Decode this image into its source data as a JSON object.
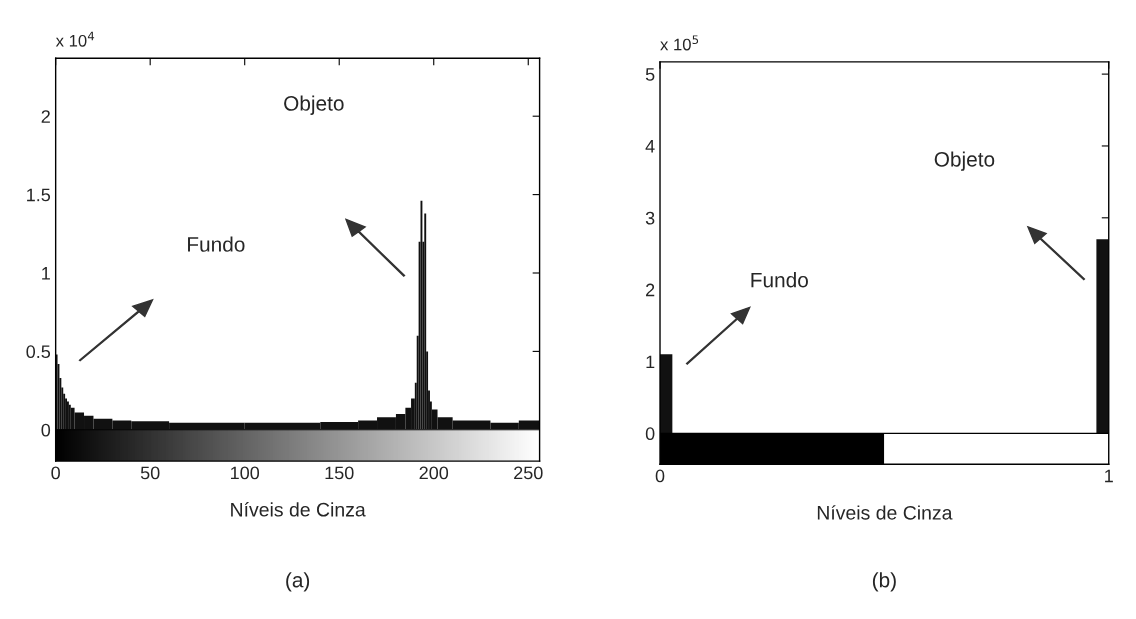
{
  "chart_data": [
    {
      "type": "histogram",
      "title": "(a)",
      "xlabel": "Níveis de Cinza",
      "color": "#111111",
      "bins": [
        0,
        1,
        2,
        3,
        4,
        5,
        6,
        7,
        8,
        10,
        15,
        20,
        30,
        40,
        60,
        100,
        140,
        160,
        170,
        180,
        185,
        188,
        190,
        191,
        192,
        193,
        194,
        195,
        196,
        197,
        198,
        199,
        202,
        210,
        230,
        245,
        256
      ],
      "values": [
        0.48,
        0.42,
        0.33,
        0.27,
        0.23,
        0.2,
        0.18,
        0.16,
        0.14,
        0.11,
        0.09,
        0.07,
        0.06,
        0.055,
        0.045,
        0.045,
        0.05,
        0.06,
        0.08,
        0.1,
        0.14,
        0.2,
        0.3,
        0.6,
        1.2,
        1.46,
        1.2,
        1.38,
        0.5,
        0.25,
        0.18,
        0.13,
        0.08,
        0.06,
        0.045,
        0.06
      ],
      "xlim": [
        0,
        256
      ],
      "xticks": [
        0,
        50,
        100,
        150,
        200,
        250
      ],
      "ylim": [
        -0.2,
        2.37
      ],
      "yticks": [
        0,
        0.5,
        1,
        1.5,
        2
      ],
      "annotations": [
        "x 10$^{4}$",
        "Objeto",
        "Fundo"
      ]
    },
    {
      "type": "bar",
      "title": "(b)",
      "xlabel": "Níveis de Cinza",
      "color": "#111111",
      "x": [
        0,
        1
      ],
      "values": [
        1.1,
        2.7
      ],
      "xlim": [
        0,
        1
      ],
      "xticks": [
        0,
        1
      ],
      "ylim": [
        -0.43,
        5.17
      ],
      "yticks": [
        0,
        1,
        2,
        3,
        4,
        5
      ],
      "annotations": [
        "x 10$^{5}$",
        "Objeto",
        "Fundo"
      ]
    }
  ]
}
